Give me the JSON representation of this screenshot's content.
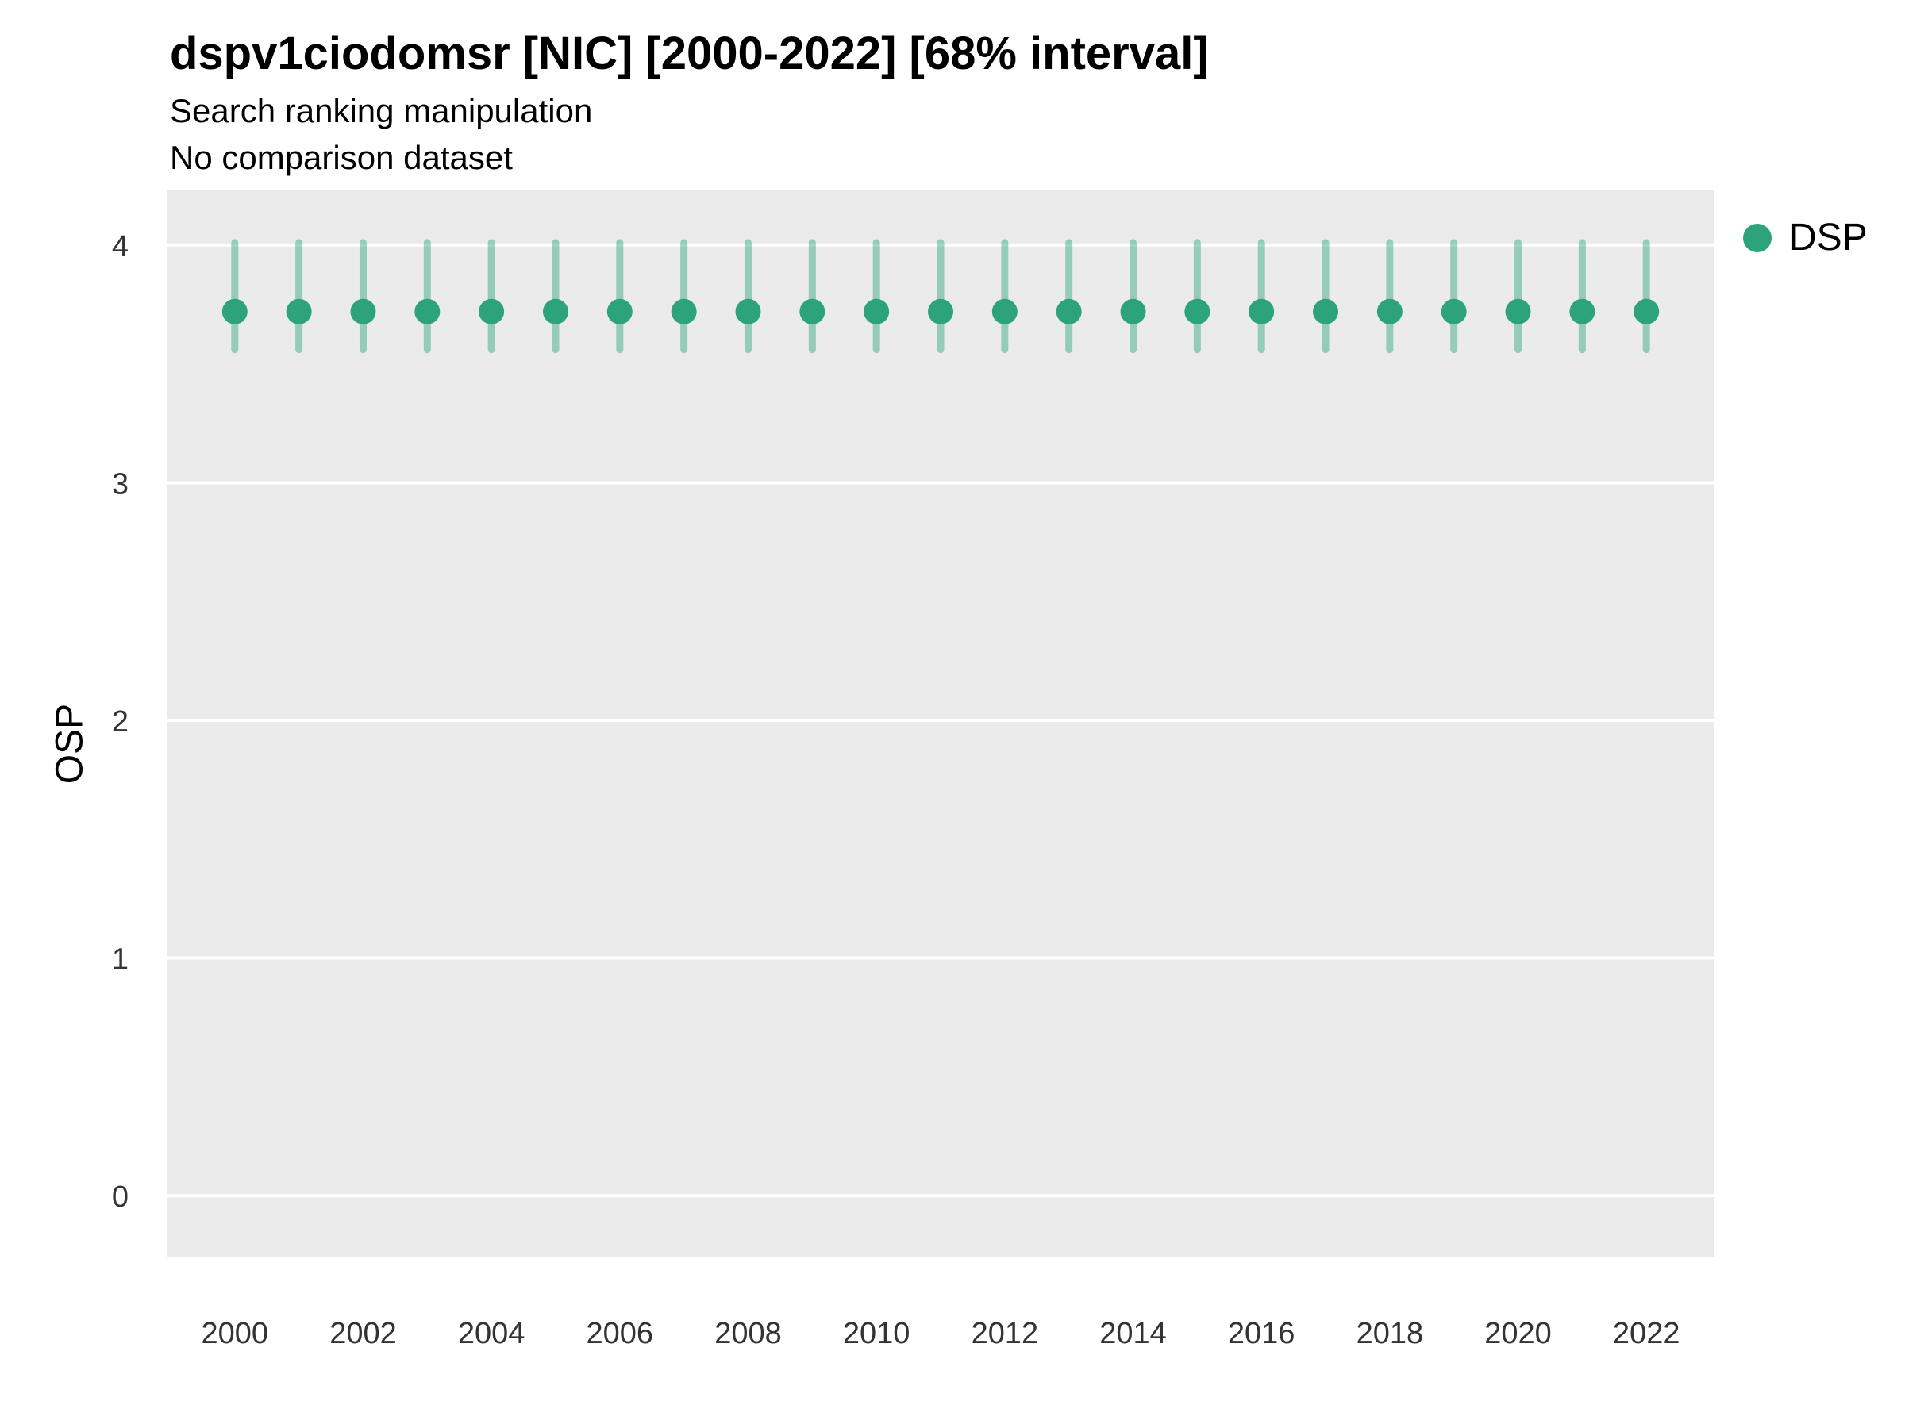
{
  "legend": {
    "items": [
      {
        "label": "DSP",
        "color": "#2DA37C"
      }
    ],
    "position": "right"
  },
  "chart_data": {
    "type": "scatter",
    "title": "dspv1ciodomsr [NIC] [2000-2022] [68% interval]",
    "subtitle": [
      "Search ranking manipulation",
      "No comparison dataset"
    ],
    "xlabel": "",
    "ylabel": "OSP",
    "ylim": [
      -0.26,
      4.23
    ],
    "yticks": [
      0,
      1,
      2,
      3,
      4
    ],
    "x": [
      2000,
      2001,
      2002,
      2003,
      2004,
      2005,
      2006,
      2007,
      2008,
      2009,
      2010,
      2011,
      2012,
      2013,
      2014,
      2015,
      2016,
      2017,
      2018,
      2019,
      2020,
      2021,
      2022
    ],
    "xtick_labels": [
      2000,
      2002,
      2004,
      2006,
      2008,
      2010,
      2012,
      2014,
      2016,
      2018,
      2020,
      2022
    ],
    "interval": "68%",
    "grid": "major-white-on-gray",
    "panel_bg": "#EBEBEB",
    "grid_color": "#FFFFFF",
    "legend_position": "right",
    "series": [
      {
        "name": "DSP",
        "color": "#2DA37C",
        "bar_color": "rgba(45,163,124,0.45)",
        "values": [
          3.72,
          3.72,
          3.72,
          3.72,
          3.72,
          3.72,
          3.72,
          3.72,
          3.72,
          3.72,
          3.72,
          3.72,
          3.72,
          3.72,
          3.72,
          3.72,
          3.72,
          3.72,
          3.72,
          3.72,
          3.72,
          3.72,
          3.72
        ],
        "lower": [
          3.56,
          3.56,
          3.56,
          3.56,
          3.56,
          3.56,
          3.56,
          3.56,
          3.56,
          3.56,
          3.56,
          3.56,
          3.56,
          3.56,
          3.56,
          3.56,
          3.56,
          3.56,
          3.56,
          3.56,
          3.56,
          3.56,
          3.56
        ],
        "upper": [
          4.01,
          4.01,
          4.01,
          4.01,
          4.01,
          4.01,
          4.01,
          4.01,
          4.01,
          4.01,
          4.01,
          4.01,
          4.01,
          4.01,
          4.01,
          4.01,
          4.01,
          4.01,
          4.01,
          4.01,
          4.01,
          4.01,
          4.01
        ]
      }
    ]
  }
}
